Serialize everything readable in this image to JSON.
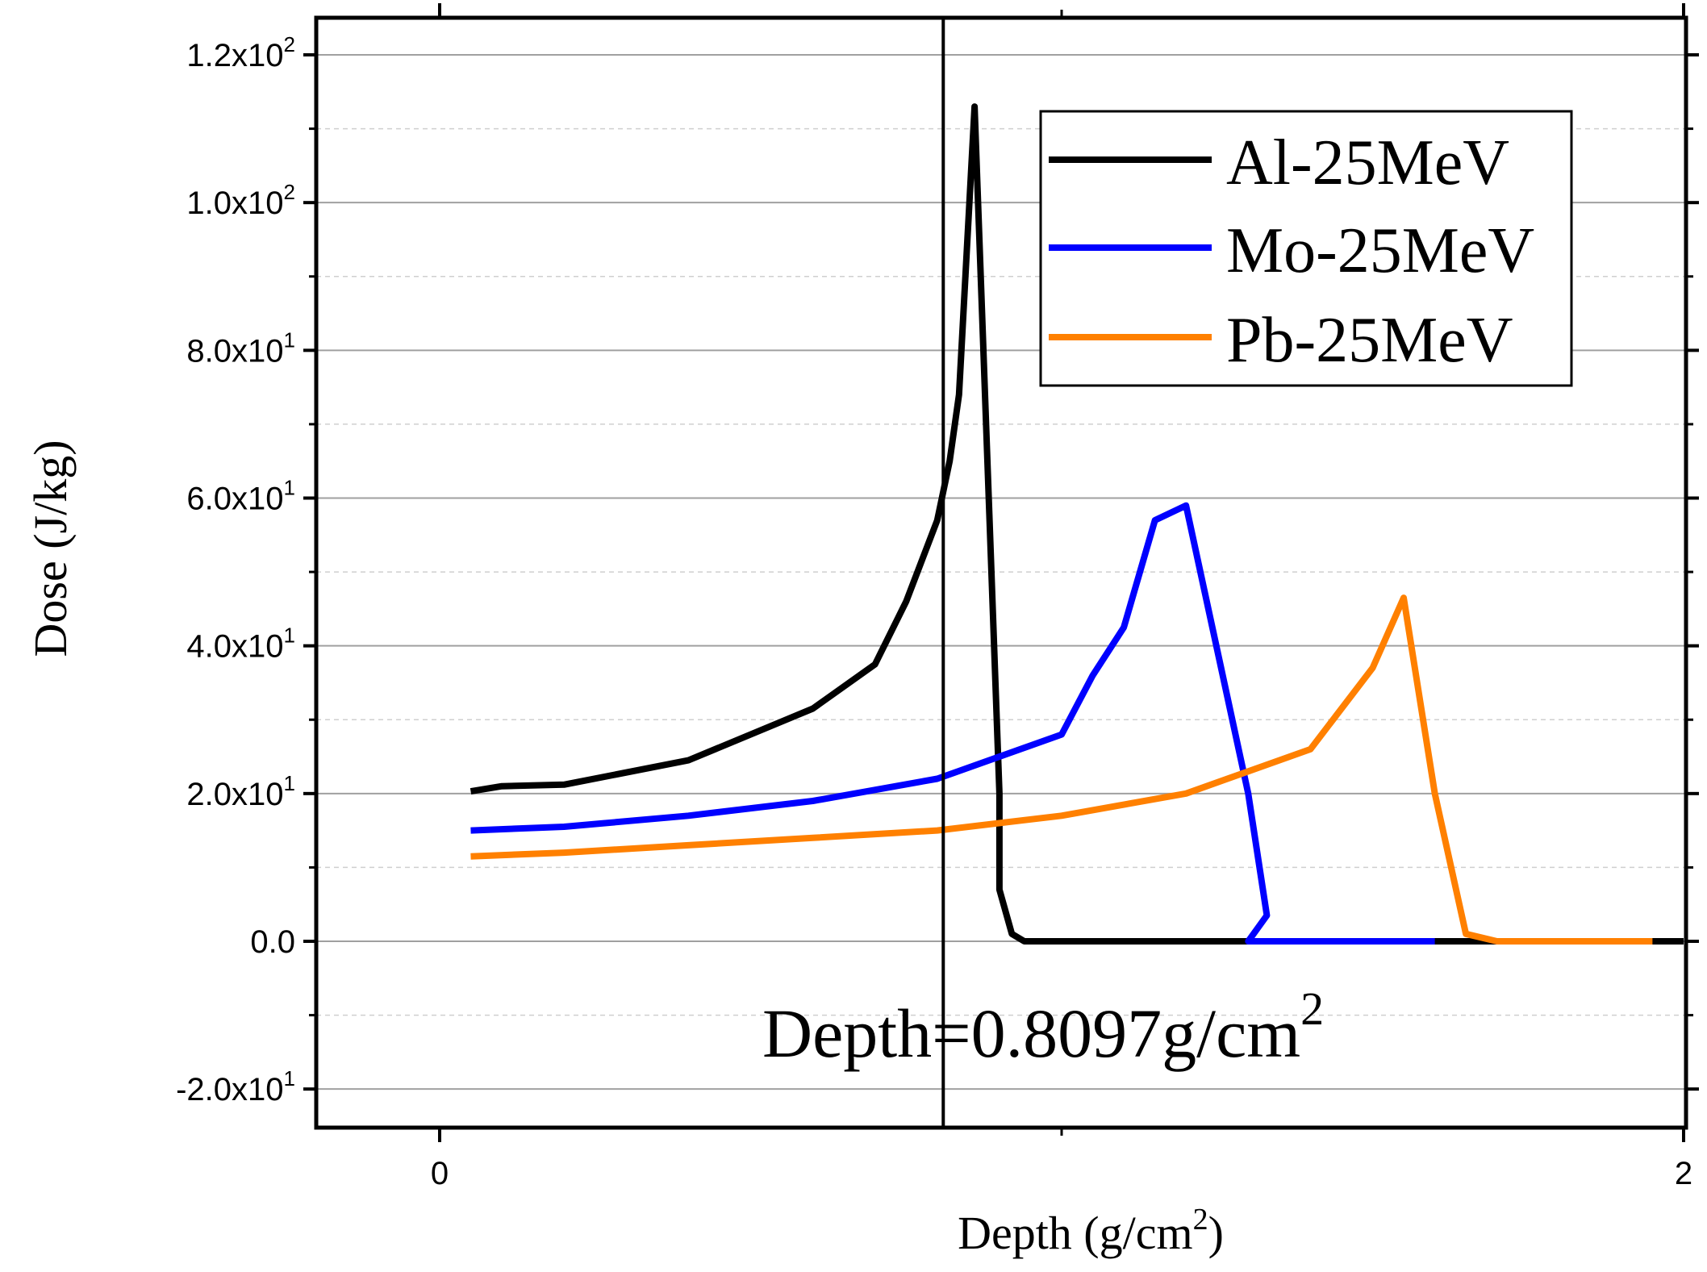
{
  "chart_data": {
    "type": "line",
    "title": "",
    "xlabel": "Depth (g/cm",
    "xlabel_sup": "2",
    "xlabel_end": ")",
    "ylabel": "Dose (J/kg)",
    "xlim": [
      -0.2,
      2.0
    ],
    "ylim": [
      -25,
      125
    ],
    "x_ticks": [
      {
        "value": 0,
        "label": "0"
      },
      {
        "value": 2,
        "label": "2"
      }
    ],
    "y_ticks": [
      {
        "value": 120,
        "mantissa": "1.2x10",
        "exp": "2"
      },
      {
        "value": 100,
        "mantissa": "1.0x10",
        "exp": "2"
      },
      {
        "value": 80,
        "mantissa": "8.0x10",
        "exp": "1"
      },
      {
        "value": 60,
        "mantissa": "6.0x10",
        "exp": "1"
      },
      {
        "value": 40,
        "mantissa": "4.0x10",
        "exp": "1"
      },
      {
        "value": 20,
        "mantissa": "2.0x10",
        "exp": "1"
      },
      {
        "value": 0,
        "mantissa": "0.0",
        "exp": ""
      },
      {
        "value": -20,
        "mantissa": "-2.0x10",
        "exp": "1"
      }
    ],
    "grid": true,
    "legend_position": "top-right",
    "marker": {
      "x": 0.8097,
      "label": "Depth=0.8097g/cm",
      "label_sup": "2"
    },
    "series": [
      {
        "name": "Al-25MeV",
        "color": "#000000",
        "points": [
          [
            0.05,
            20.3
          ],
          [
            0.1,
            21.0
          ],
          [
            0.2,
            21.2
          ],
          [
            0.4,
            24.5
          ],
          [
            0.6,
            31.5
          ],
          [
            0.7,
            37.5
          ],
          [
            0.75,
            46
          ],
          [
            0.8,
            57
          ],
          [
            0.82,
            65
          ],
          [
            0.835,
            74
          ],
          [
            0.86,
            113
          ],
          [
            0.9,
            20
          ],
          [
            0.9,
            7
          ],
          [
            0.92,
            1
          ],
          [
            0.94,
            0
          ],
          [
            2.0,
            0
          ]
        ]
      },
      {
        "name": "Mo-25MeV",
        "color": "#0000ff",
        "points": [
          [
            0.05,
            15
          ],
          [
            0.2,
            15.5
          ],
          [
            0.4,
            17
          ],
          [
            0.6,
            19
          ],
          [
            0.8,
            22
          ],
          [
            1.0,
            28
          ],
          [
            1.05,
            36
          ],
          [
            1.1,
            42.5
          ],
          [
            1.15,
            57
          ],
          [
            1.2,
            59
          ],
          [
            1.3,
            20
          ],
          [
            1.33,
            3.5
          ],
          [
            1.3,
            0
          ],
          [
            1.6,
            0
          ]
        ]
      },
      {
        "name": "Pb-25MeV",
        "color": "#ff8000",
        "points": [
          [
            0.05,
            11.5
          ],
          [
            0.2,
            12
          ],
          [
            0.4,
            13
          ],
          [
            0.6,
            14
          ],
          [
            0.8,
            15
          ],
          [
            1.0,
            17
          ],
          [
            1.2,
            20
          ],
          [
            1.4,
            26
          ],
          [
            1.5,
            37
          ],
          [
            1.55,
            46.5
          ],
          [
            1.6,
            20
          ],
          [
            1.65,
            1
          ],
          [
            1.7,
            0
          ],
          [
            1.95,
            0
          ]
        ]
      }
    ]
  }
}
